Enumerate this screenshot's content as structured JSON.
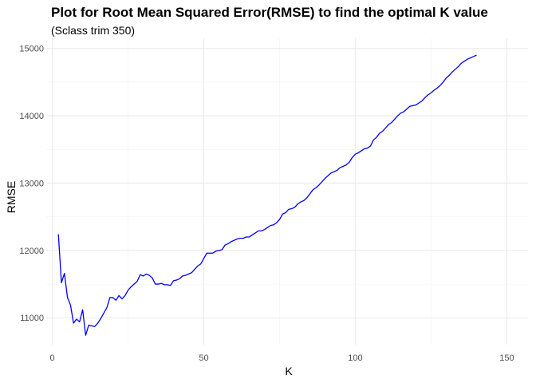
{
  "chart_data": {
    "type": "line",
    "title": "Plot for Root Mean Squared Error(RMSE) to find the optimal K value",
    "subtitle": "(Sclass trim 350)",
    "xlabel": "K",
    "ylabel": "RMSE",
    "xlim": [
      -2,
      157
    ],
    "ylim": [
      10600,
      15150
    ],
    "x_ticks": [
      0,
      50,
      100,
      150
    ],
    "y_ticks": [
      11000,
      12000,
      13000,
      14000,
      15000
    ],
    "x_tick_labels": [
      "0",
      "50",
      "100",
      "150"
    ],
    "y_tick_labels": [
      "11000",
      "12000",
      "13000",
      "14000",
      "15000"
    ],
    "grid": true,
    "legend": "none",
    "series": [
      {
        "color": "#0000ff",
        "points": [
          [
            2,
            12240
          ],
          [
            3,
            11520
          ],
          [
            4,
            11660
          ],
          [
            5,
            11300
          ],
          [
            6,
            11190
          ],
          [
            7,
            10920
          ],
          [
            8,
            10980
          ],
          [
            9,
            10940
          ],
          [
            10,
            11120
          ],
          [
            11,
            10740
          ],
          [
            12,
            10890
          ],
          [
            13,
            10880
          ],
          [
            14,
            10870
          ],
          [
            15,
            10920
          ],
          [
            16,
            10990
          ],
          [
            17,
            11070
          ],
          [
            18,
            11150
          ],
          [
            19,
            11300
          ],
          [
            20,
            11300
          ],
          [
            21,
            11260
          ],
          [
            22,
            11330
          ],
          [
            23,
            11280
          ],
          [
            24,
            11330
          ],
          [
            25,
            11410
          ],
          [
            26,
            11460
          ],
          [
            27,
            11500
          ],
          [
            28,
            11540
          ],
          [
            29,
            11640
          ],
          [
            30,
            11620
          ],
          [
            31,
            11650
          ],
          [
            32,
            11630
          ],
          [
            33,
            11590
          ],
          [
            34,
            11500
          ],
          [
            35,
            11500
          ],
          [
            36,
            11510
          ],
          [
            37,
            11490
          ],
          [
            38,
            11490
          ],
          [
            39,
            11480
          ],
          [
            40,
            11550
          ],
          [
            41,
            11560
          ],
          [
            42,
            11580
          ],
          [
            43,
            11620
          ],
          [
            44,
            11630
          ],
          [
            45,
            11650
          ],
          [
            46,
            11670
          ],
          [
            47,
            11720
          ],
          [
            48,
            11770
          ],
          [
            49,
            11800
          ],
          [
            50,
            11880
          ],
          [
            51,
            11960
          ],
          [
            52,
            11960
          ],
          [
            53,
            11960
          ],
          [
            54,
            11990
          ],
          [
            55,
            12000
          ],
          [
            56,
            12010
          ],
          [
            57,
            12080
          ],
          [
            58,
            12100
          ],
          [
            59,
            12130
          ],
          [
            60,
            12150
          ],
          [
            61,
            12170
          ],
          [
            62,
            12180
          ],
          [
            63,
            12180
          ],
          [
            64,
            12200
          ],
          [
            65,
            12200
          ],
          [
            66,
            12230
          ],
          [
            67,
            12260
          ],
          [
            68,
            12290
          ],
          [
            69,
            12290
          ],
          [
            70,
            12310
          ],
          [
            71,
            12340
          ],
          [
            72,
            12370
          ],
          [
            73,
            12380
          ],
          [
            74,
            12410
          ],
          [
            75,
            12460
          ],
          [
            76,
            12540
          ],
          [
            77,
            12560
          ],
          [
            78,
            12610
          ],
          [
            79,
            12620
          ],
          [
            80,
            12640
          ],
          [
            81,
            12690
          ],
          [
            82,
            12720
          ],
          [
            83,
            12740
          ],
          [
            84,
            12780
          ],
          [
            85,
            12840
          ],
          [
            86,
            12900
          ],
          [
            87,
            12930
          ],
          [
            88,
            12970
          ],
          [
            89,
            13020
          ],
          [
            90,
            13070
          ],
          [
            91,
            13110
          ],
          [
            92,
            13150
          ],
          [
            93,
            13170
          ],
          [
            94,
            13190
          ],
          [
            95,
            13230
          ],
          [
            96,
            13250
          ],
          [
            97,
            13270
          ],
          [
            98,
            13310
          ],
          [
            99,
            13380
          ],
          [
            100,
            13430
          ],
          [
            101,
            13450
          ],
          [
            102,
            13480
          ],
          [
            103,
            13510
          ],
          [
            104,
            13520
          ],
          [
            105,
            13550
          ],
          [
            106,
            13640
          ],
          [
            107,
            13680
          ],
          [
            108,
            13740
          ],
          [
            109,
            13770
          ],
          [
            110,
            13820
          ],
          [
            111,
            13870
          ],
          [
            112,
            13900
          ],
          [
            113,
            13950
          ],
          [
            114,
            14000
          ],
          [
            115,
            14040
          ],
          [
            116,
            14060
          ],
          [
            117,
            14100
          ],
          [
            118,
            14140
          ],
          [
            119,
            14150
          ],
          [
            120,
            14160
          ],
          [
            121,
            14190
          ],
          [
            122,
            14220
          ],
          [
            123,
            14270
          ],
          [
            124,
            14310
          ],
          [
            125,
            14340
          ],
          [
            126,
            14380
          ],
          [
            127,
            14410
          ],
          [
            128,
            14450
          ],
          [
            129,
            14500
          ],
          [
            130,
            14560
          ],
          [
            131,
            14600
          ],
          [
            132,
            14650
          ],
          [
            133,
            14690
          ],
          [
            134,
            14730
          ],
          [
            135,
            14780
          ],
          [
            136,
            14810
          ],
          [
            137,
            14840
          ],
          [
            138,
            14860
          ],
          [
            139,
            14880
          ],
          [
            140,
            14900
          ]
        ]
      }
    ]
  }
}
